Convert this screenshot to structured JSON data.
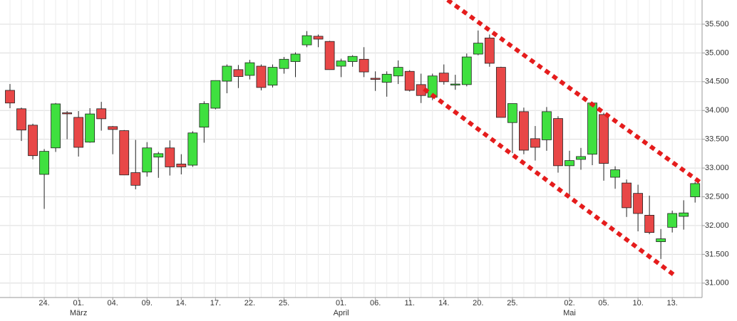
{
  "chart_data": {
    "type": "candlestick",
    "categories": [
      null,
      null,
      null,
      "24.",
      null,
      null,
      "01.",
      null,
      null,
      "04.",
      null,
      null,
      "09.",
      null,
      null,
      "14.",
      null,
      null,
      "17.",
      null,
      null,
      "22.",
      null,
      null,
      "25.",
      null,
      null,
      null,
      null,
      "01.",
      null,
      null,
      "06.",
      null,
      null,
      "11.",
      null,
      null,
      "14.",
      null,
      null,
      "20.",
      null,
      null,
      "25.",
      null,
      null,
      null,
      null,
      "02.",
      null,
      null,
      "05.",
      null,
      null,
      "10.",
      null,
      null,
      "13.",
      null,
      null
    ],
    "months": [
      "März",
      "April",
      "Mai"
    ],
    "open": [
      34350,
      34030,
      33745,
      32890,
      33350,
      33960,
      33880,
      33450,
      34030,
      33720,
      33650,
      32920,
      32930,
      33190,
      33350,
      33070,
      33050,
      33710,
      34040,
      34510,
      34710,
      34610,
      34770,
      34440,
      34730,
      34850,
      35140,
      35290,
      35200,
      34770,
      34850,
      34890,
      34560,
      34490,
      34600,
      34680,
      34450,
      34230,
      34650,
      34450,
      34450,
      34980,
      35260,
      34750,
      33790,
      33980,
      33510,
      33490,
      33860,
      33040,
      33150,
      33240,
      33930,
      32840,
      32740,
      32560,
      32180,
      31720,
      31970,
      32160,
      32500
    ],
    "high": [
      34460,
      34050,
      33770,
      33330,
      34130,
      33990,
      33990,
      34040,
      34150,
      33730,
      33660,
      33490,
      33450,
      33280,
      33480,
      33240,
      33640,
      34160,
      34520,
      34800,
      34790,
      34880,
      34800,
      34800,
      34930,
      35010,
      35380,
      35320,
      35210,
      34900,
      34960,
      35100,
      34680,
      34680,
      34870,
      34700,
      34640,
      34640,
      34800,
      34620,
      34990,
      35390,
      35320,
      34760,
      34120,
      34050,
      33730,
      34060,
      33900,
      33300,
      33350,
      34150,
      33960,
      33030,
      32800,
      32710,
      32520,
      31940,
      32260,
      32440,
      32760
    ],
    "low": [
      34040,
      33470,
      33150,
      32290,
      33280,
      33500,
      33200,
      33440,
      33650,
      33240,
      32880,
      32630,
      32850,
      32830,
      32870,
      32890,
      33020,
      33440,
      34020,
      34300,
      34390,
      34540,
      34350,
      34400,
      34640,
      34580,
      35100,
      35100,
      34710,
      34580,
      34760,
      34580,
      34340,
      34240,
      34460,
      34330,
      34130,
      34180,
      34450,
      34360,
      34420,
      34960,
      34760,
      33880,
      33260,
      33240,
      33130,
      33300,
      32920,
      32500,
      32970,
      33050,
      32780,
      32640,
      32150,
      31900,
      31850,
      31420,
      31880,
      31930,
      32400
    ],
    "close": [
      34130,
      33660,
      33215,
      33290,
      34115,
      33950,
      33360,
      33940,
      33856,
      33670,
      32880,
      32700,
      33350,
      33250,
      33020,
      33020,
      33610,
      34120,
      34520,
      34770,
      34590,
      34830,
      34400,
      34750,
      34890,
      34980,
      35300,
      35240,
      34710,
      34860,
      34940,
      34670,
      34540,
      34630,
      34750,
      34350,
      34260,
      34600,
      34500,
      34460,
      34930,
      35170,
      34820,
      33880,
      34120,
      33310,
      33360,
      33980,
      33040,
      33130,
      33200,
      34130,
      33080,
      32970,
      32310,
      32210,
      31880,
      31770,
      32210,
      32220,
      32730
    ],
    "up_color": "#3fe03f",
    "down_color": "#e84747",
    "ylim": [
      30750,
      35920
    ],
    "yticks": [
      {
        "value": 31000,
        "label": "31.000"
      },
      {
        "value": 31500,
        "label": "31.500"
      },
      {
        "value": 32000,
        "label": "32.000"
      },
      {
        "value": 32500,
        "label": "32.500"
      },
      {
        "value": 33000,
        "label": "33.000"
      },
      {
        "value": 33500,
        "label": "33.500"
      },
      {
        "value": 34000,
        "label": "34.000"
      },
      {
        "value": 34500,
        "label": "34.500"
      },
      {
        "value": 35000,
        "label": "35.000"
      },
      {
        "value": 35500,
        "label": "35.500"
      }
    ],
    "grid": true
  }
}
